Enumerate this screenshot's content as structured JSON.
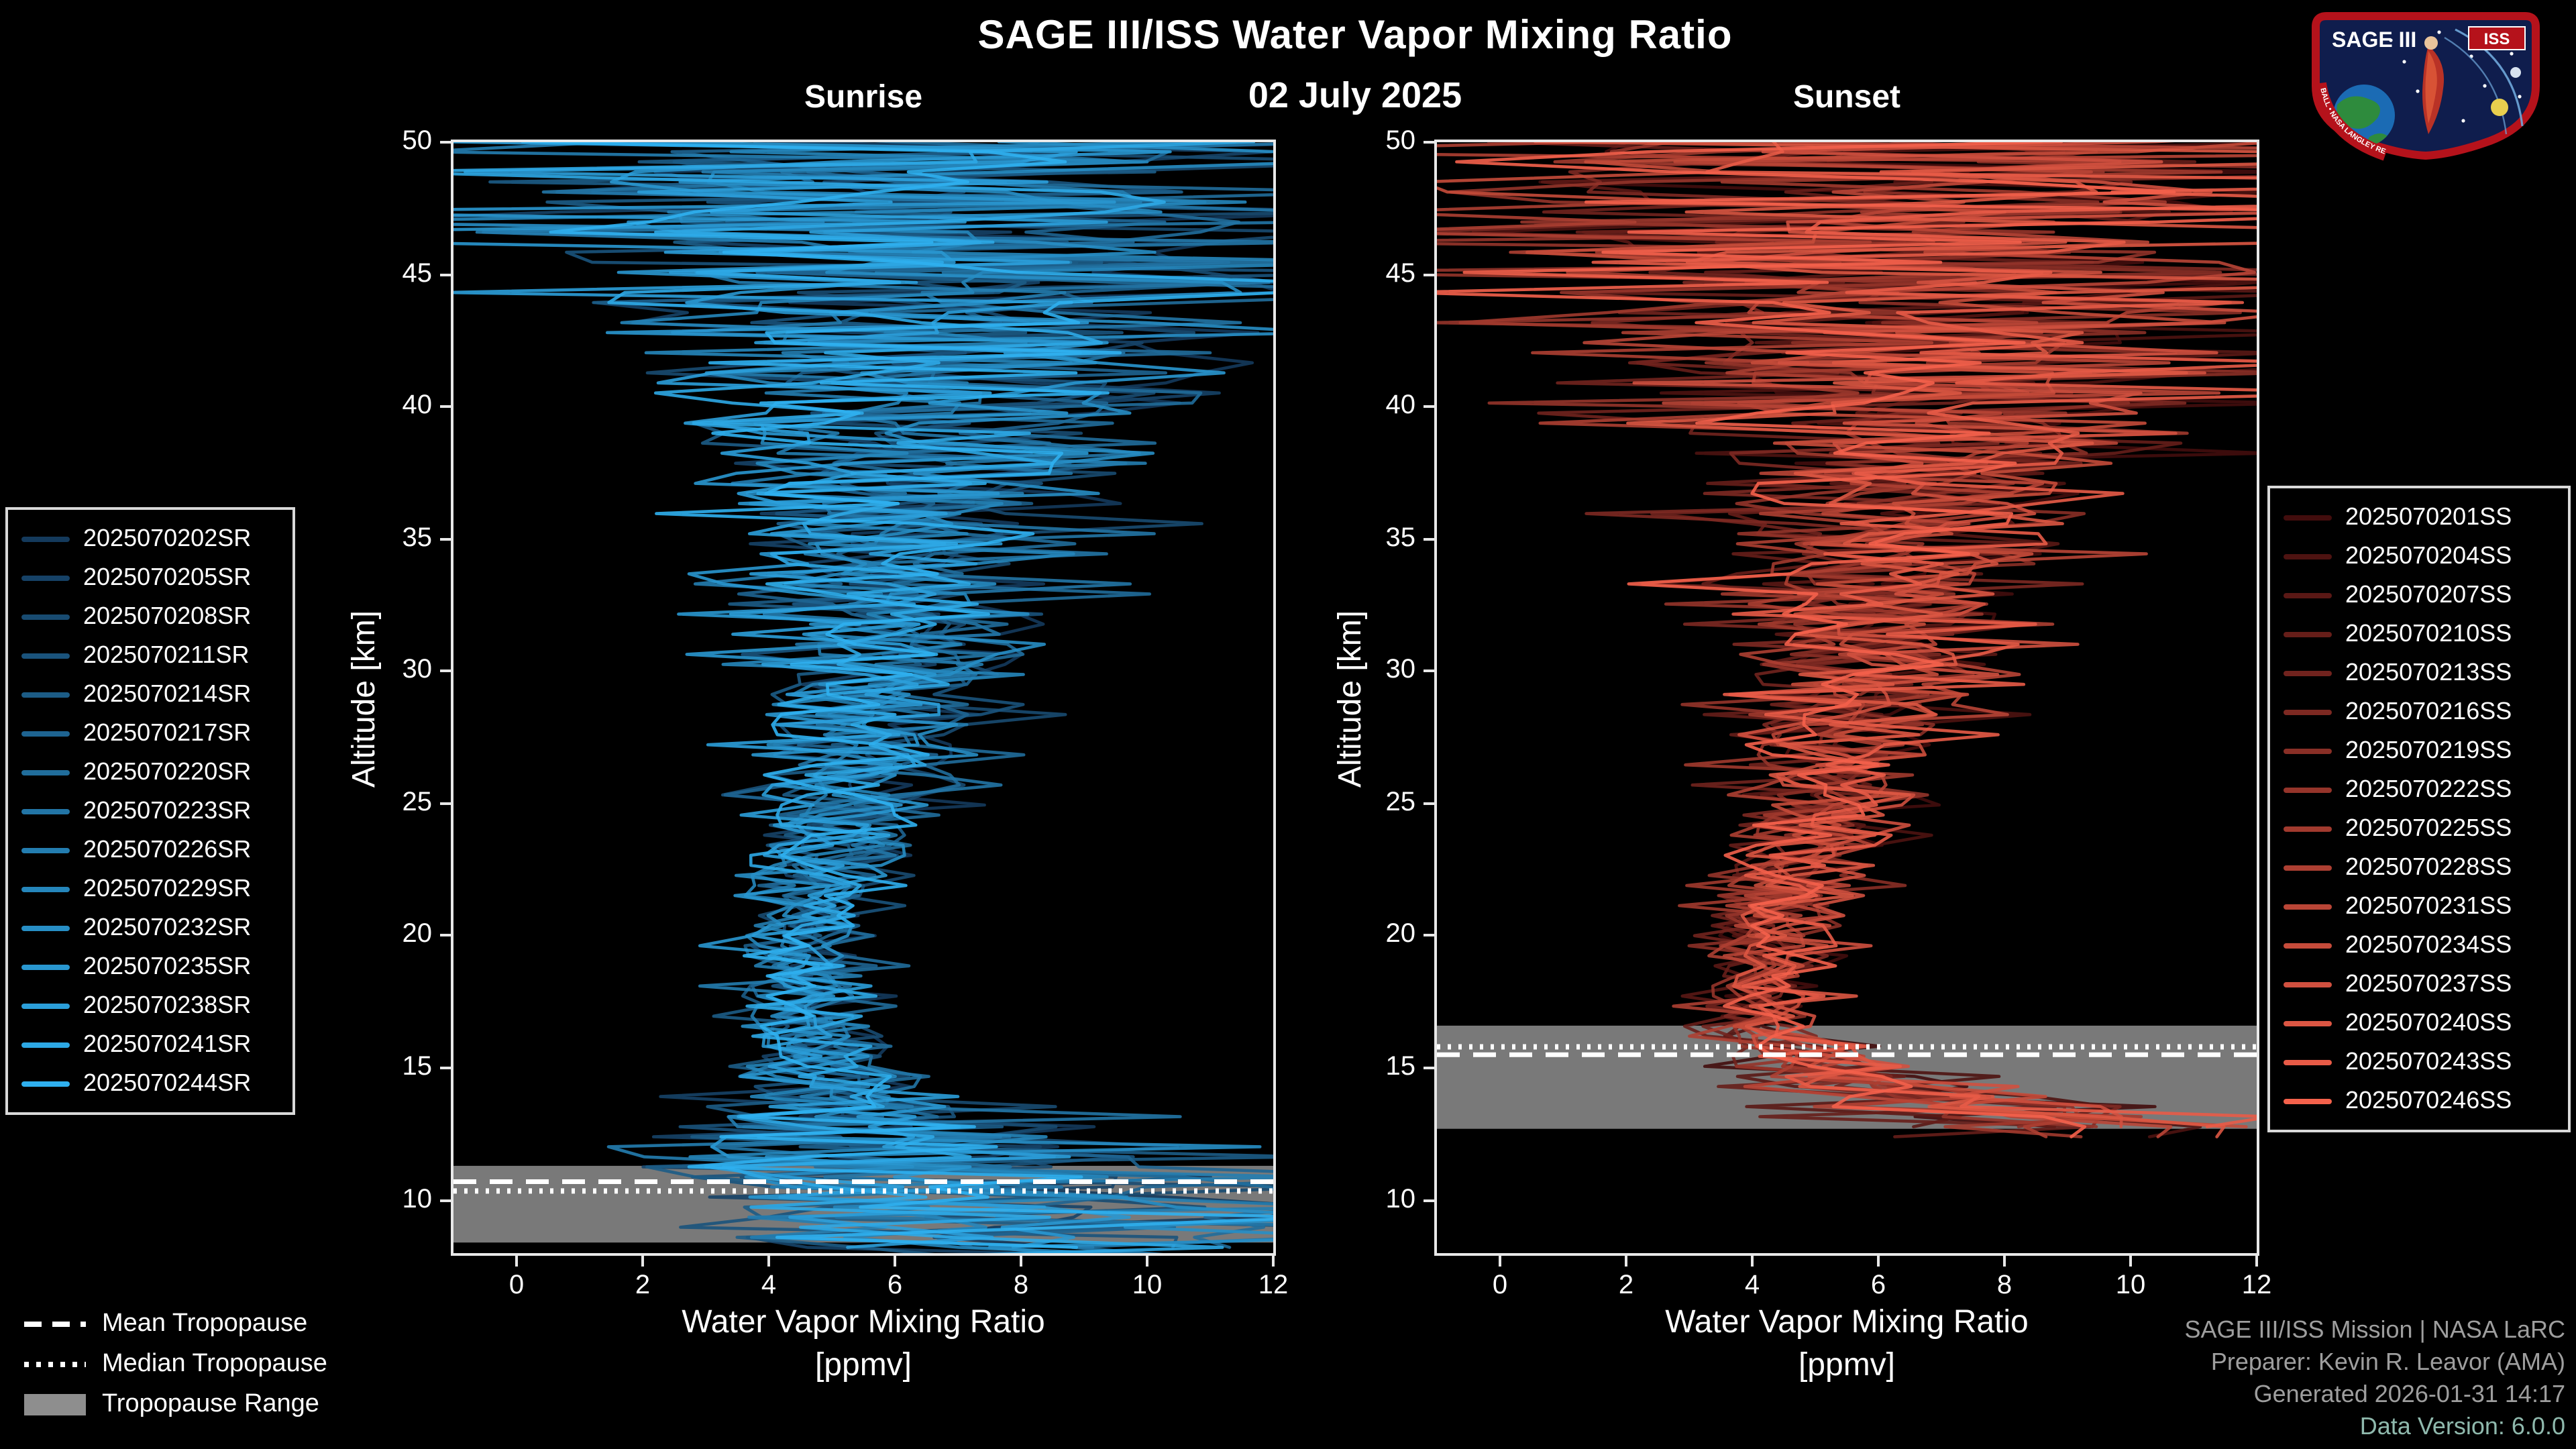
{
  "header": {
    "title": "SAGE III/ISS Water Vapor Mixing Ratio",
    "date": "02 July 2025"
  },
  "logo": {
    "text_top": "SAGE III",
    "text_iss": "ISS",
    "ring_text": "BALL • NASA LANGLEY RESEARCH CENTER • ESA"
  },
  "footer": {
    "line1": "SAGE III/ISS Mission | NASA LaRC",
    "line2": "Preparer: Kevin R. Leavor (AMA)",
    "line3": "Generated 2026-01-31 14:17",
    "line4": "Data Version: 6.0.0"
  },
  "chart_data": {
    "type": "line",
    "title": "SAGE III/ISS Water Vapor Mixing Ratio",
    "subtitle_date": "02 July 2025",
    "xlabel_line1": "Water Vapor Mixing Ratio",
    "xlabel_line2": "[ppmv]",
    "ylabel": "Altitude [km]",
    "xlim": [
      -1,
      12
    ],
    "ylim": [
      8,
      50
    ],
    "xticks": [
      0,
      2,
      4,
      6,
      8,
      10,
      12
    ],
    "yticks": [
      10,
      15,
      20,
      25,
      30,
      35,
      40,
      45,
      50
    ],
    "grid": false,
    "background": "#000000",
    "band_color": "#8e8e8e",
    "tropopause_legend": [
      {
        "label": "Mean Tropopause",
        "style": "dashed"
      },
      {
        "label": "Median Tropopause",
        "style": "dotted"
      },
      {
        "label": "Tropopause Range",
        "style": "band"
      }
    ],
    "panels": [
      {
        "id": "sunrise",
        "subtitle": "Sunrise",
        "color_start": "#143a5c",
        "color_end": "#2fb0ef",
        "legend_position": "left",
        "series": [
          "2025070202SR",
          "2025070205SR",
          "2025070208SR",
          "2025070211SR",
          "2025070214SR",
          "2025070217SR",
          "2025070220SR",
          "2025070223SR",
          "2025070226SR",
          "2025070229SR",
          "2025070232SR",
          "2025070235SR",
          "2025070238SR",
          "2025070241SR",
          "2025070244SR"
        ],
        "tropopause": {
          "mean_km": 10.7,
          "median_km": 10.35,
          "range_km": [
            8.4,
            11.3
          ]
        },
        "min_alt_km": 7.8,
        "profile": {
          "alt_km": [
            8,
            9,
            10,
            11,
            12,
            13,
            14,
            15,
            16,
            18,
            20,
            22,
            25,
            28,
            30,
            32,
            35,
            38,
            40,
            43,
            45,
            47,
            50
          ],
          "mean_ppmv": [
            8.5,
            8.0,
            7.5,
            7.0,
            6.5,
            6.0,
            5.2,
            4.9,
            4.7,
            4.5,
            4.6,
            4.9,
            5.3,
            5.7,
            5.9,
            6.1,
            6.4,
            6.6,
            6.7,
            6.7,
            6.6,
            6.5,
            6.5
          ],
          "spread_ppmv": [
            4.0,
            4.0,
            4.5,
            4.5,
            4.0,
            3.0,
            1.6,
            1.1,
            0.9,
            0.8,
            0.9,
            1.0,
            1.2,
            1.5,
            1.7,
            1.9,
            2.3,
            2.9,
            3.5,
            4.3,
            5.0,
            5.8,
            6.5
          ]
        }
      },
      {
        "id": "sunset",
        "subtitle": "Sunset",
        "color_start": "#420d0d",
        "color_end": "#f4614b",
        "legend_position": "right",
        "series": [
          "2025070201SS",
          "2025070204SS",
          "2025070207SS",
          "2025070210SS",
          "2025070213SS",
          "2025070216SS",
          "2025070219SS",
          "2025070222SS",
          "2025070225SS",
          "2025070228SS",
          "2025070231SS",
          "2025070234SS",
          "2025070237SS",
          "2025070240SS",
          "2025070243SS",
          "2025070246SS"
        ],
        "tropopause": {
          "mean_km": 15.5,
          "median_km": 15.8,
          "range_km": [
            12.7,
            16.6
          ]
        },
        "min_alt_km": 12.4,
        "profile": {
          "alt_km": [
            12.4,
            13,
            14,
            15,
            16,
            17,
            18,
            20,
            22,
            25,
            28,
            30,
            32,
            35,
            38,
            40,
            43,
            45,
            47,
            50
          ],
          "mean_ppmv": [
            10.0,
            9.0,
            6.5,
            5.0,
            4.5,
            4.2,
            4.2,
            4.4,
            4.7,
            5.2,
            5.6,
            5.9,
            6.2,
            6.5,
            6.8,
            7.0,
            7.0,
            7.0,
            7.0,
            7.0
          ],
          "spread_ppmv": [
            2.5,
            2.5,
            2.0,
            1.3,
            1.0,
            0.8,
            0.8,
            0.9,
            1.0,
            1.2,
            1.5,
            1.7,
            2.0,
            2.4,
            3.0,
            3.6,
            4.4,
            5.2,
            6.0,
            6.5
          ]
        }
      }
    ]
  }
}
